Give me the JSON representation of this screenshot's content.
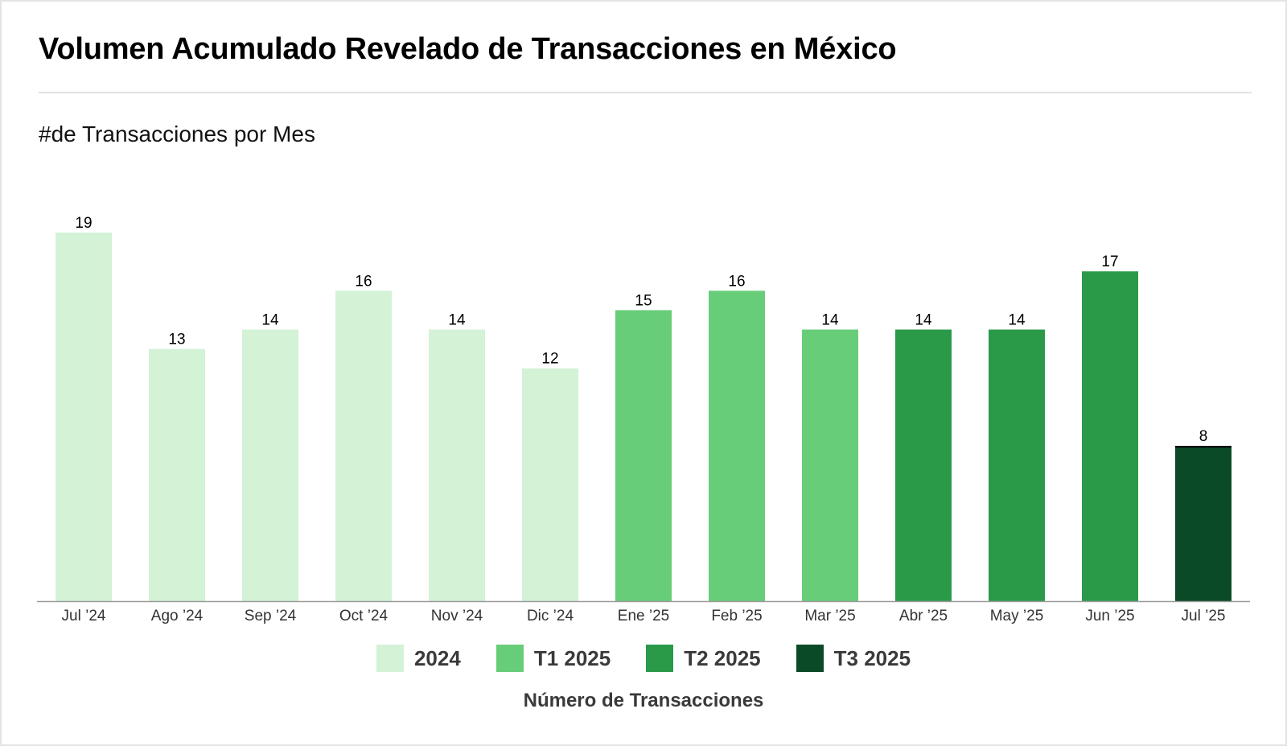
{
  "chart_data": {
    "type": "bar",
    "title": "Volumen Acumulado Revelado de Transacciones en México",
    "subtitle": "#de Transacciones por Mes",
    "xlabel": "Número de Transacciones",
    "ylabel": "",
    "ylim": [
      0,
      19
    ],
    "grid": false,
    "legend_position": "bottom-center",
    "categories": [
      "Jul ’24",
      "Ago ’24",
      "Sep ’24",
      "Oct ’24",
      "Nov ’24",
      "Dic ’24",
      "Ene ’25",
      "Feb ’25",
      "Mar ’25",
      "Abr ’25",
      "May ’25",
      "Jun ’25",
      "Jul ’25"
    ],
    "values": [
      19,
      13,
      14,
      16,
      14,
      12,
      15,
      16,
      14,
      14,
      14,
      17,
      8
    ],
    "groups": [
      "2024",
      "2024",
      "2024",
      "2024",
      "2024",
      "2024",
      "T1 2025",
      "T1 2025",
      "T1 2025",
      "T2 2025",
      "T2 2025",
      "T2 2025",
      "T3 2025"
    ],
    "legend": [
      {
        "name": "2024",
        "color": "#d3f2d6"
      },
      {
        "name": "T1 2025",
        "color": "#67cd78"
      },
      {
        "name": "T2 2025",
        "color": "#2a9a49"
      },
      {
        "name": "T3 2025",
        "color": "#0b4a26"
      }
    ]
  }
}
